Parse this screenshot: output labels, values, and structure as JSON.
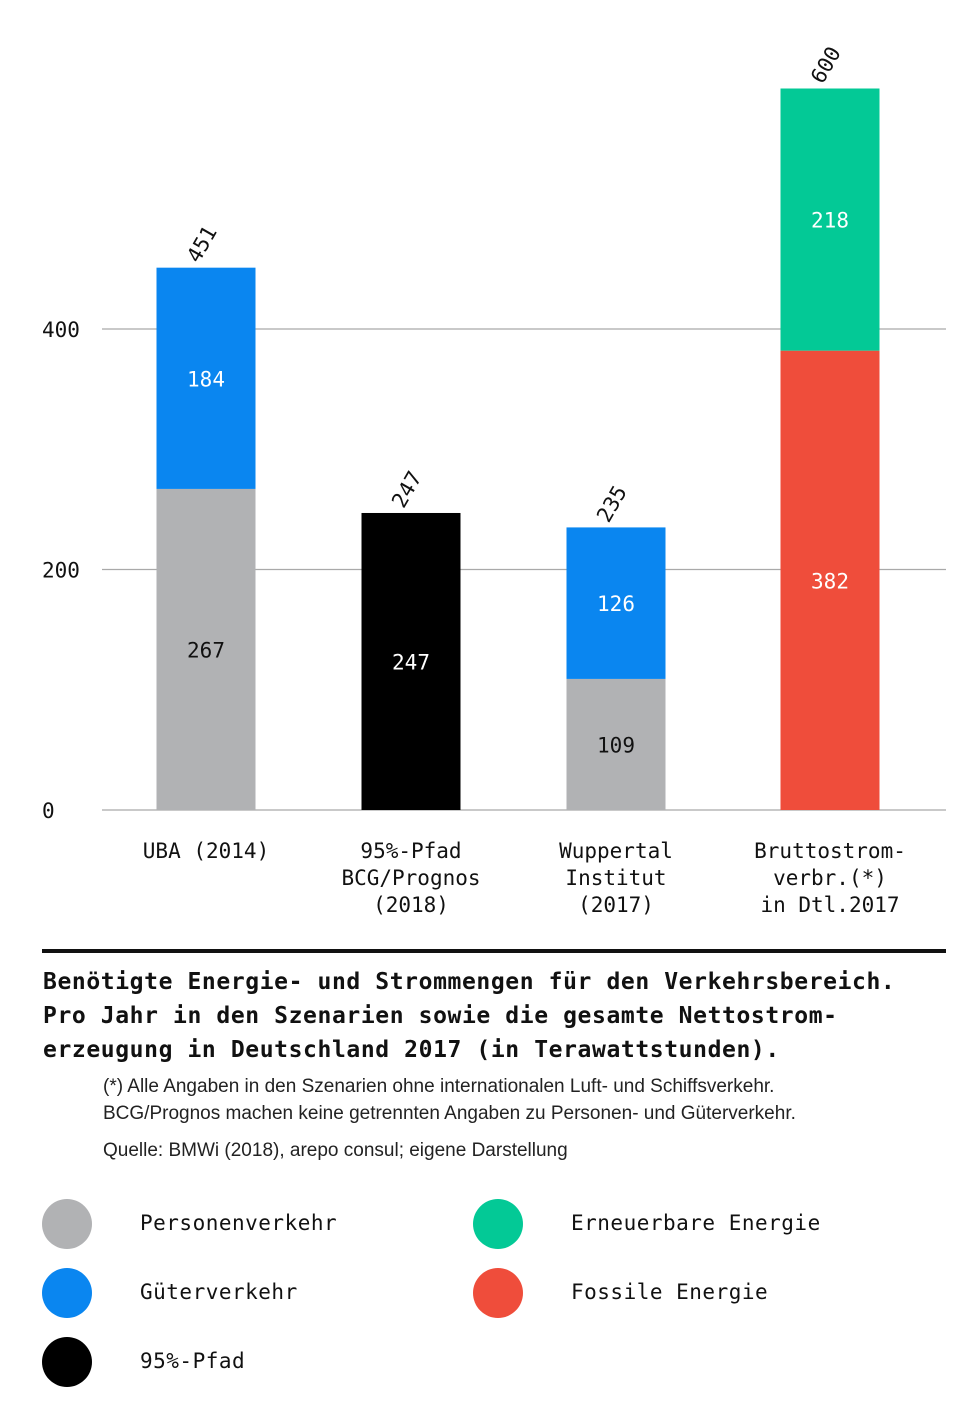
{
  "colors": {
    "personenverkehr": "#b1b2b4",
    "gueterverkehr": "#0a86f0",
    "pfad95": "#000000",
    "erneuerbare": "#03c996",
    "fossile": "#ef4d3b",
    "grid": "#a9a9a9"
  },
  "chart_data": {
    "type": "bar",
    "stacked": true,
    "ylim": [
      0,
      600
    ],
    "yticks": [
      0,
      200,
      400
    ],
    "grid": true,
    "categories": [
      [
        "UBA (2014)"
      ],
      [
        "95%-Pfad",
        "BCG/Prognos",
        "(2018)"
      ],
      [
        "Wuppertal",
        "Institut",
        "(2017)"
      ],
      [
        "Bruttostrom-",
        "verbr.(*)",
        "in Dtl.2017"
      ]
    ],
    "totals": [
      451,
      247,
      235,
      600
    ],
    "series": [
      {
        "name": "Personenverkehr",
        "color_key": "personenverkehr",
        "values": [
          267,
          0,
          109,
          0
        ]
      },
      {
        "name": "Güterverkehr",
        "color_key": "gueterverkehr",
        "values": [
          184,
          0,
          126,
          0
        ]
      },
      {
        "name": "95%-Pfad",
        "color_key": "pfad95",
        "values": [
          0,
          247,
          0,
          0
        ]
      },
      {
        "name": "Fossile Energie",
        "color_key": "fossile",
        "values": [
          0,
          0,
          0,
          382
        ]
      },
      {
        "name": "Erneuerbare Energie",
        "color_key": "erneuerbare",
        "values": [
          0,
          0,
          0,
          218
        ]
      }
    ]
  },
  "caption": {
    "title_lines": [
      "Benötigte Energie- und Strommengen für den Verkehrsbereich.",
      "Pro Jahr in den Szenarien sowie die gesamte Nettostrom-",
      "erzeugung in Deutschland 2017 (in Terawattstunden)."
    ],
    "note_lines": [
      "(*) Alle Angaben in den Szenarien ohne internationalen Luft- und Schiffsverkehr.",
      "BCG/Prognos machen keine getrennten Angaben zu Personen- und Güterverkehr."
    ],
    "source": "Quelle: BMWi (2018), arepo consul; eigene Darstellung"
  },
  "legend": [
    {
      "label": "Personenverkehr",
      "color_key": "personenverkehr"
    },
    {
      "label": "Güterverkehr",
      "color_key": "gueterverkehr"
    },
    {
      "label": "95%-Pfad",
      "color_key": "pfad95"
    },
    {
      "label": "Erneuerbare Energie",
      "color_key": "erneuerbare"
    },
    {
      "label": "Fossile Energie",
      "color_key": "fossile"
    }
  ]
}
